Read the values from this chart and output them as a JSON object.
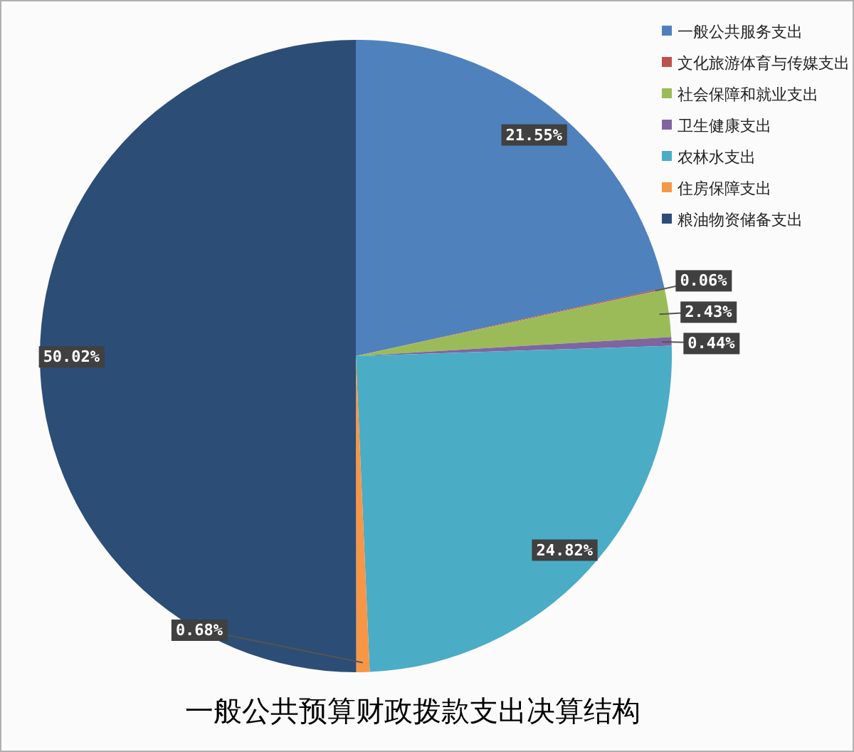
{
  "chart_data": {
    "type": "pie",
    "title": "一般公共预算财政拨款支出决算结构",
    "categories": [
      "一般公共服务支出",
      "文化旅游体育与传媒支出",
      "社会保障和就业支出",
      "卫生健康支出",
      "农林水支出",
      "住房保障支出",
      "粮油物资储备支出"
    ],
    "values": [
      21.55,
      0.06,
      2.43,
      0.44,
      24.82,
      0.68,
      50.02
    ],
    "value_labels": [
      "21.55%",
      "0.06%",
      "2.43%",
      "0.44%",
      "24.82%",
      "0.68%",
      "50.02%"
    ],
    "colors": [
      "#4f81bd",
      "#c0504d",
      "#9bbb59",
      "#8064a2",
      "#4bacc6",
      "#f79646",
      "#2c4d75"
    ],
    "legend": "top right"
  }
}
